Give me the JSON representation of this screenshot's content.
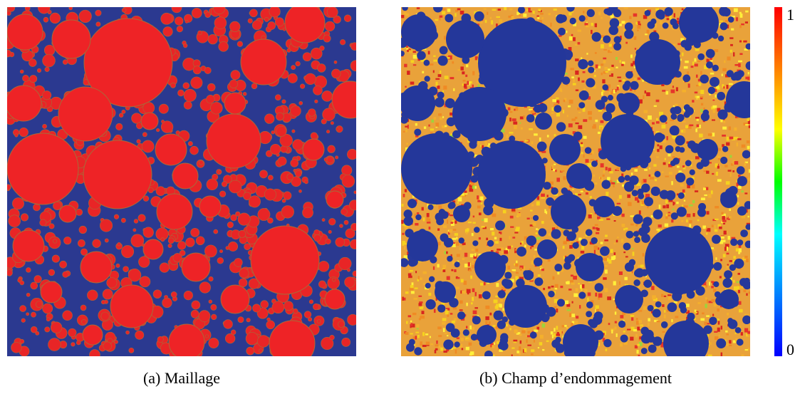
{
  "figure": {
    "panels": [
      {
        "caption": "(a) Maillage"
      },
      {
        "caption": "(b) Champ d’endommagement"
      }
    ],
    "colorbar": {
      "max": 1,
      "min": 0
    }
  }
}
